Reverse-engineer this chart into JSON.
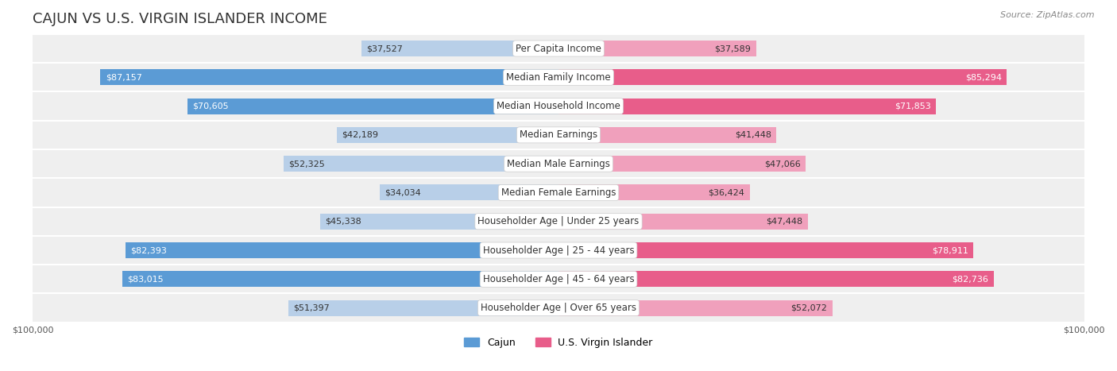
{
  "title": "CAJUN VS U.S. VIRGIN ISLANDER INCOME",
  "source": "Source: ZipAtlas.com",
  "categories": [
    "Per Capita Income",
    "Median Family Income",
    "Median Household Income",
    "Median Earnings",
    "Median Male Earnings",
    "Median Female Earnings",
    "Householder Age | Under 25 years",
    "Householder Age | 25 - 44 years",
    "Householder Age | 45 - 64 years",
    "Householder Age | Over 65 years"
  ],
  "cajun_values": [
    37527,
    87157,
    70605,
    42189,
    52325,
    34034,
    45338,
    82393,
    83015,
    51397
  ],
  "usvi_values": [
    37589,
    85294,
    71853,
    41448,
    47066,
    36424,
    47448,
    78911,
    82736,
    52072
  ],
  "max_value": 100000,
  "cajun_color_full": "#5b9bd5",
  "cajun_color_light": "#b8cfe8",
  "usvi_color_full": "#e85d8a",
  "usvi_color_light": "#f0a0bc",
  "bar_row_bg": "#f0f0f0",
  "bar_height": 0.55,
  "row_bg_color": "#efefef",
  "background_color": "#ffffff",
  "title_fontsize": 13,
  "label_fontsize": 8.5,
  "value_fontsize": 8,
  "legend_fontsize": 9,
  "axis_label_fontsize": 8
}
